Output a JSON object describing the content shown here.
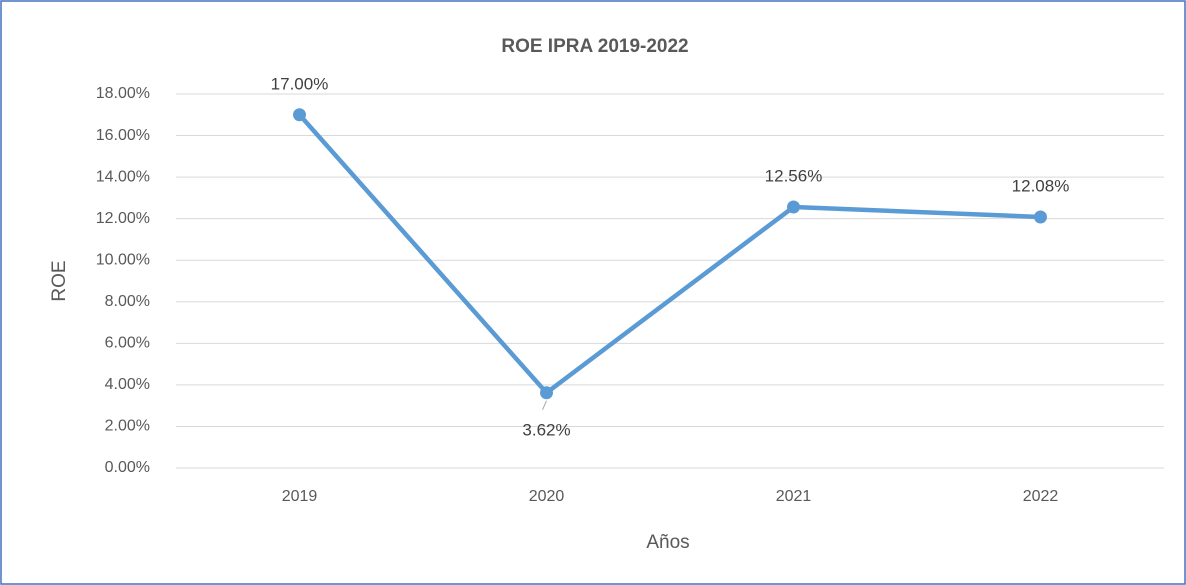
{
  "chart_data": {
    "type": "line",
    "title": "ROE IPRA 2019-2022",
    "x_label": "Años",
    "y_label": "ROE",
    "categories": [
      "2019",
      "2020",
      "2021",
      "2022"
    ],
    "values": [
      17,
      3.62,
      12.56,
      12.08
    ],
    "value_labels": [
      "17.00%",
      "3.62%",
      "12.56%",
      "12.08%"
    ],
    "color": "#5b9bd5",
    "ylim": [
      0,
      18
    ],
    "yticks": [
      {
        "value": 0,
        "label": "0.00%"
      },
      {
        "value": 2,
        "label": "2.00%"
      },
      {
        "value": 4,
        "label": "4.00%"
      },
      {
        "value": 6,
        "label": "6.00%"
      },
      {
        "value": 8,
        "label": "8.00%"
      },
      {
        "value": 10,
        "label": "10.00%"
      },
      {
        "value": 12,
        "label": "12.00%"
      },
      {
        "value": 14,
        "label": "14.00%"
      },
      {
        "value": 16,
        "label": "16.00%"
      },
      {
        "value": 18,
        "label": "18.00%"
      }
    ],
    "grid": true
  }
}
